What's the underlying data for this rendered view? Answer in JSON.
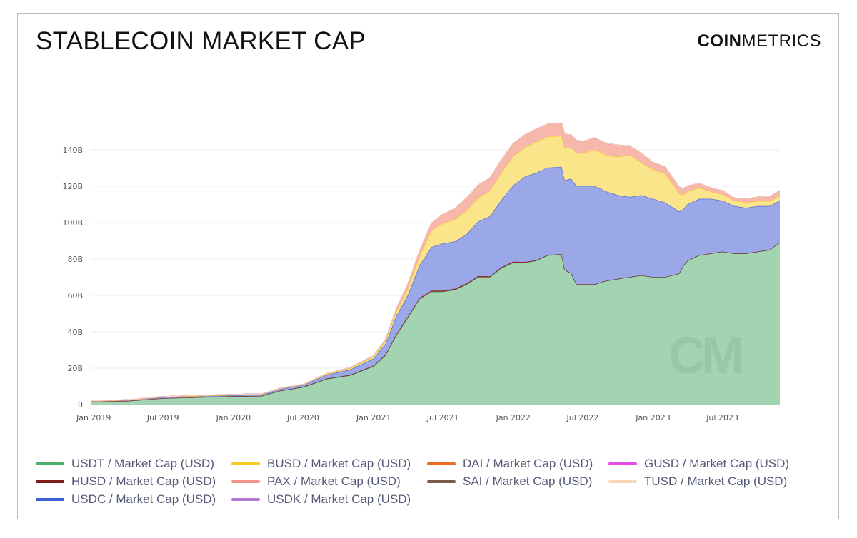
{
  "header": {
    "title": "STABLECOIN MARKET CAP",
    "brand_bold": "COIN",
    "brand_light": "METRICS",
    "watermark": "CM"
  },
  "chart_data": {
    "type": "area",
    "stacked": true,
    "title": "STABLECOIN MARKET CAP",
    "xlabel": "",
    "ylabel": "",
    "grid": true,
    "legend_position": "bottom",
    "x_range": [
      "2018-12-26",
      "2023-11-28"
    ],
    "ylim": [
      0,
      160
    ],
    "y_ticks": [
      {
        "value": 0,
        "label": "0"
      },
      {
        "value": 20,
        "label": "20B"
      },
      {
        "value": 40,
        "label": "40B"
      },
      {
        "value": 60,
        "label": "60B"
      },
      {
        "value": 80,
        "label": "80B"
      },
      {
        "value": 100,
        "label": "100B"
      },
      {
        "value": 120,
        "label": "120B"
      },
      {
        "value": 140,
        "label": "140B"
      }
    ],
    "x_ticks": [
      {
        "date": "2019-01-01",
        "label": "Jan 2019"
      },
      {
        "date": "2019-07-01",
        "label": "Jul 2019"
      },
      {
        "date": "2020-01-01",
        "label": "Jan 2020"
      },
      {
        "date": "2020-07-01",
        "label": "Jul 2020"
      },
      {
        "date": "2021-01-01",
        "label": "Jan 2021"
      },
      {
        "date": "2021-07-01",
        "label": "Jul 2021"
      },
      {
        "date": "2022-01-01",
        "label": "Jan 2022"
      },
      {
        "date": "2022-07-01",
        "label": "Jul 2022"
      },
      {
        "date": "2023-01-01",
        "label": "Jan 2023"
      },
      {
        "date": "2023-07-01",
        "label": "Jul 2023"
      }
    ],
    "x": [
      "2018-12-26",
      "2019-04-01",
      "2019-07-01",
      "2019-10-01",
      "2020-01-01",
      "2020-03-15",
      "2020-05-01",
      "2020-07-01",
      "2020-09-01",
      "2020-11-01",
      "2021-01-01",
      "2021-02-01",
      "2021-03-01",
      "2021-04-01",
      "2021-05-01",
      "2021-06-01",
      "2021-07-01",
      "2021-08-01",
      "2021-09-01",
      "2021-10-01",
      "2021-11-01",
      "2021-12-01",
      "2022-01-01",
      "2022-02-01",
      "2022-03-01",
      "2022-04-01",
      "2022-05-07",
      "2022-05-15",
      "2022-06-01",
      "2022-06-15",
      "2022-07-01",
      "2022-08-01",
      "2022-09-01",
      "2022-10-01",
      "2022-11-01",
      "2022-12-01",
      "2023-01-01",
      "2023-02-01",
      "2023-03-10",
      "2023-03-20",
      "2023-04-01",
      "2023-05-01",
      "2023-06-01",
      "2023-07-01",
      "2023-08-01",
      "2023-09-01",
      "2023-10-01",
      "2023-11-01",
      "2023-11-28"
    ],
    "series": [
      {
        "name": "USDT / Market Cap (USD)",
        "color": "#4caf6e",
        "fill": "#a3d4b1",
        "values": [
          1.5,
          2,
          3.5,
          4,
          4.5,
          4.7,
          7.5,
          9.5,
          14,
          16,
          21,
          27,
          38,
          48,
          58,
          62,
          62,
          63,
          66,
          70,
          70,
          75,
          78,
          78,
          79,
          82,
          82.5,
          74,
          72,
          66,
          66,
          66,
          68,
          69,
          70,
          71,
          70,
          70,
          72,
          76,
          79,
          82,
          83,
          84,
          83,
          83,
          84,
          85,
          89
        ]
      },
      {
        "name": "HUSD / Market Cap (USD)",
        "color": "#7d1b1b",
        "fill": "#a83232",
        "values": [
          0,
          0,
          0,
          0,
          0.1,
          0.1,
          0.1,
          0.2,
          0.3,
          0.3,
          0.4,
          0.5,
          0.5,
          0.6,
          0.6,
          0.6,
          0.6,
          0.6,
          0.6,
          0.6,
          0.5,
          0.5,
          0.5,
          0.4,
          0.3,
          0.2,
          0.2,
          0.2,
          0.2,
          0.2,
          0.1,
          0.1,
          0.1,
          0.1,
          0.1,
          0.1,
          0.1,
          0.1,
          0.1,
          0.1,
          0.1,
          0.1,
          0.1,
          0.1,
          0.1,
          0.1,
          0.1,
          0.1,
          0.1
        ]
      },
      {
        "name": "USDC / Market Cap (USD)",
        "color": "#3f5fd8",
        "fill": "#9ba8e8",
        "values": [
          0.4,
          0.3,
          0.6,
          0.5,
          0.5,
          0.6,
          0.9,
          1,
          2,
          2.9,
          3.9,
          6,
          10,
          12,
          18,
          24,
          26,
          26,
          27,
          30,
          33,
          37,
          42,
          47,
          48,
          48,
          48,
          49,
          52,
          54,
          54,
          54,
          49,
          46,
          44,
          44,
          43,
          41,
          34,
          31,
          31,
          31,
          30,
          28,
          26,
          25,
          25,
          24,
          23
        ]
      },
      {
        "name": "BUSD / Market Cap (USD)",
        "color": "#f5cd1e",
        "fill": "#fbe58a",
        "values": [
          0,
          0.1,
          0.1,
          0.2,
          0.2,
          0.2,
          0.2,
          0.2,
          0.4,
          0.6,
          1,
          1.5,
          2.5,
          3.5,
          5,
          9,
          11,
          12,
          13,
          13,
          14,
          15,
          16,
          16,
          17,
          17,
          17,
          18,
          17,
          18,
          18,
          20,
          20,
          21,
          23,
          18,
          16,
          16,
          10,
          8,
          7,
          6,
          4,
          3.5,
          3,
          3,
          2.8,
          2.6,
          2.5
        ]
      },
      {
        "name": "PAX / Market Cap (USD)",
        "color": "#f3968a",
        "fill": "#f7b7aa",
        "values": [
          0.2,
          0.2,
          0.2,
          0.3,
          0.3,
          0.2,
          0.2,
          0.2,
          0.3,
          0.5,
          0.6,
          0.8,
          1.5,
          2.5,
          3,
          4,
          5,
          6,
          7,
          7,
          7,
          7,
          7,
          7,
          7,
          7,
          7,
          7.5,
          7,
          7,
          6.5,
          6.5,
          6.5,
          6.5,
          5,
          5,
          4,
          3.5,
          3.5,
          3.5,
          3,
          2.5,
          2,
          2,
          1.5,
          1.8,
          2.2,
          2.6,
          3
        ]
      },
      {
        "name": "USDK / Market Cap (USD)",
        "color": "#b479d6",
        "fill": "#c9a0e0",
        "values": [
          0,
          0,
          0,
          0,
          0,
          0,
          0,
          0,
          0,
          0,
          0,
          0,
          0,
          0,
          0,
          0,
          0,
          0,
          0,
          0,
          0,
          0,
          0,
          0,
          0,
          0,
          0,
          0,
          0,
          0,
          0,
          0,
          0,
          0,
          0,
          0,
          0,
          0,
          0,
          0,
          0,
          0,
          0,
          0,
          0,
          0,
          0,
          0,
          0
        ]
      },
      {
        "name": "DAI / Market Cap (USD)",
        "color": "#ee6a24",
        "fill": "#f09058",
        "values": [
          0,
          0,
          0,
          0,
          0,
          0,
          0,
          0,
          0,
          0,
          0,
          0,
          0,
          0,
          0,
          0,
          0,
          0,
          0,
          0,
          0,
          0,
          0,
          0,
          0,
          0,
          0,
          0,
          0,
          0,
          0,
          0,
          0,
          0,
          0,
          0,
          0,
          0,
          0,
          0,
          0,
          0,
          0,
          0,
          0,
          0,
          0,
          0,
          0
        ]
      },
      {
        "name": "SAI / Market Cap (USD)",
        "color": "#7a5b4b",
        "fill": "#9c7d6d",
        "values": [
          0,
          0,
          0,
          0,
          0,
          0,
          0,
          0,
          0,
          0,
          0,
          0,
          0,
          0,
          0,
          0,
          0,
          0,
          0,
          0,
          0,
          0,
          0,
          0,
          0,
          0,
          0,
          0,
          0,
          0,
          0,
          0,
          0,
          0,
          0,
          0,
          0,
          0,
          0,
          0,
          0,
          0,
          0,
          0,
          0,
          0,
          0,
          0,
          0
        ]
      },
      {
        "name": "GUSD / Market Cap (USD)",
        "color": "#e84ce8",
        "fill": "#f08cf0",
        "values": [
          0,
          0,
          0,
          0,
          0,
          0,
          0,
          0,
          0,
          0,
          0,
          0,
          0,
          0,
          0,
          0,
          0,
          0,
          0,
          0,
          0,
          0,
          0,
          0,
          0,
          0,
          0,
          0,
          0,
          0,
          0,
          0,
          0,
          0,
          0,
          0,
          0,
          0,
          0,
          0,
          0,
          0,
          0,
          0,
          0,
          0,
          0,
          0,
          0
        ]
      },
      {
        "name": "TUSD / Market Cap (USD)",
        "color": "#f8d7b8",
        "fill": "#fbe5d0",
        "values": [
          0,
          0,
          0,
          0,
          0,
          0,
          0,
          0,
          0,
          0,
          0,
          0,
          0,
          0,
          0,
          0,
          0,
          0,
          0,
          0,
          0,
          0,
          0,
          0,
          0,
          0,
          0,
          0,
          0,
          0,
          0,
          0,
          0,
          0,
          0,
          0,
          0,
          0,
          0,
          0,
          0,
          0,
          0,
          0,
          0,
          0,
          0,
          0,
          0
        ]
      }
    ]
  },
  "legend": {
    "items": [
      {
        "label": "USDT / Market Cap (USD)",
        "color": "#4caf6e"
      },
      {
        "label": "BUSD / Market Cap (USD)",
        "color": "#f5cd1e"
      },
      {
        "label": "DAI / Market Cap (USD)",
        "color": "#ee6a24"
      },
      {
        "label": "GUSD / Market Cap (USD)",
        "color": "#e84ce8"
      },
      {
        "label": "HUSD / Market Cap (USD)",
        "color": "#7d1b1b"
      },
      {
        "label": "PAX / Market Cap (USD)",
        "color": "#f3968a"
      },
      {
        "label": "SAI / Market Cap (USD)",
        "color": "#7a5b4b"
      },
      {
        "label": "TUSD / Market Cap (USD)",
        "color": "#f8d7b8"
      },
      {
        "label": "USDC / Market Cap (USD)",
        "color": "#3f5fd8"
      },
      {
        "label": "USDK / Market Cap (USD)",
        "color": "#b479d6"
      }
    ]
  }
}
